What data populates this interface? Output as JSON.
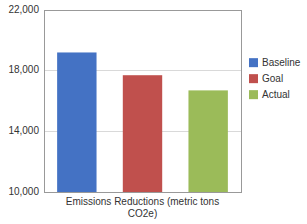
{
  "chart_data": {
    "type": "bar",
    "categories": [
      "Baseline",
      "Goal",
      "Actual"
    ],
    "values": [
      19200,
      17700,
      16700
    ],
    "colors": [
      "#4472C4",
      "#C0504D",
      "#9BBB59"
    ],
    "xlabel": "Emissions Reductions (metric tons\nCO2e)",
    "ylim": [
      10000,
      22000
    ],
    "yticks": [
      {
        "value": 10000,
        "label": "10,000"
      },
      {
        "value": 14000,
        "label": "14,000"
      },
      {
        "value": 18000,
        "label": "18,000"
      },
      {
        "value": 22000,
        "label": "22,000"
      }
    ],
    "grid": true,
    "legend": "right",
    "tick_labels": "y"
  }
}
